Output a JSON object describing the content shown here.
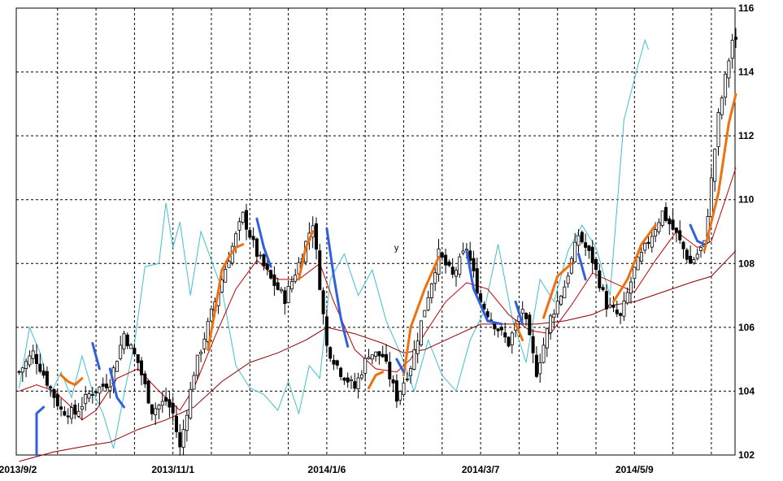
{
  "chart_data": {
    "type": "candlestick",
    "title": "",
    "xlabel": "",
    "ylabel": "",
    "ylim": [
      102,
      116
    ],
    "y_ticks": [
      102,
      104,
      106,
      108,
      110,
      112,
      114,
      116
    ],
    "y_tick_labels": [
      "102",
      "104",
      "106",
      "108",
      "110",
      "112",
      "114",
      "116"
    ],
    "x_tick_labels": [
      "2013/9/2",
      "2013/11/1",
      "2014/1/6",
      "2014/3/7",
      "2014/5/9"
    ],
    "x_tick_index": [
      0,
      44,
      88,
      132,
      176
    ],
    "grid": true,
    "grid_style": "dashed",
    "annotations": [
      {
        "text": "y",
        "index": 108,
        "value": 108.5
      }
    ],
    "colors": {
      "candle_body_up": "#ffffff",
      "candle_body_down": "#000000",
      "candle_outline": "#000000",
      "fast_ma": "#c00000",
      "slow_ma": "#8b0000",
      "cyan_line": "#40c0d0",
      "orange_segments": "#f07010",
      "blue_segments": "#3060e0"
    },
    "anchors": [
      [
        0,
        104.6
      ],
      [
        4,
        105.2
      ],
      [
        8,
        104.3
      ],
      [
        12,
        103.4
      ],
      [
        16,
        103.3
      ],
      [
        20,
        103.9
      ],
      [
        26,
        104.3
      ],
      [
        30,
        105.8
      ],
      [
        34,
        104.9
      ],
      [
        38,
        103.4
      ],
      [
        42,
        103.7
      ],
      [
        44,
        103.3
      ],
      [
        46,
        102.2
      ],
      [
        50,
        104.6
      ],
      [
        56,
        106.8
      ],
      [
        60,
        108.2
      ],
      [
        64,
        109.5
      ],
      [
        68,
        108.3
      ],
      [
        72,
        107.5
      ],
      [
        76,
        106.9
      ],
      [
        80,
        108.0
      ],
      [
        84,
        109.3
      ],
      [
        88,
        105.4
      ],
      [
        92,
        104.6
      ],
      [
        96,
        104.1
      ],
      [
        100,
        105.2
      ],
      [
        104,
        105.1
      ],
      [
        108,
        103.8
      ],
      [
        112,
        104.8
      ],
      [
        116,
        106.6
      ],
      [
        120,
        108.3
      ],
      [
        124,
        107.6
      ],
      [
        128,
        108.5
      ],
      [
        132,
        106.8
      ],
      [
        136,
        106.1
      ],
      [
        140,
        105.5
      ],
      [
        144,
        106.6
      ],
      [
        148,
        104.6
      ],
      [
        152,
        106.3
      ],
      [
        156,
        107.3
      ],
      [
        160,
        108.9
      ],
      [
        164,
        108.1
      ],
      [
        168,
        106.7
      ],
      [
        172,
        106.3
      ],
      [
        176,
        107.8
      ],
      [
        180,
        108.7
      ],
      [
        184,
        109.6
      ],
      [
        188,
        108.9
      ],
      [
        192,
        108.0
      ],
      [
        196,
        108.6
      ],
      [
        200,
        112.6
      ],
      [
        204,
        115.0
      ],
      [
        205,
        114.9
      ]
    ],
    "fast_ma_anchors": [
      [
        0,
        104.0
      ],
      [
        5,
        104.2
      ],
      [
        10,
        104.0
      ],
      [
        14,
        103.6
      ],
      [
        18,
        103.1
      ],
      [
        22,
        103.4
      ],
      [
        28,
        104.4
      ],
      [
        34,
        104.7
      ],
      [
        40,
        104.0
      ],
      [
        46,
        103.4
      ],
      [
        50,
        104.1
      ],
      [
        56,
        105.7
      ],
      [
        62,
        107.2
      ],
      [
        68,
        108.1
      ],
      [
        74,
        107.5
      ],
      [
        80,
        107.5
      ],
      [
        86,
        108.0
      ],
      [
        90,
        106.8
      ],
      [
        96,
        105.3
      ],
      [
        102,
        104.7
      ],
      [
        108,
        104.6
      ],
      [
        112,
        105.0
      ],
      [
        116,
        105.8
      ],
      [
        122,
        106.8
      ],
      [
        128,
        107.4
      ],
      [
        134,
        107.2
      ],
      [
        140,
        106.4
      ],
      [
        146,
        105.9
      ],
      [
        152,
        105.8
      ],
      [
        158,
        106.7
      ],
      [
        164,
        107.7
      ],
      [
        170,
        107.4
      ],
      [
        176,
        107.1
      ],
      [
        182,
        108.1
      ],
      [
        188,
        109.0
      ],
      [
        194,
        108.5
      ],
      [
        198,
        108.7
      ],
      [
        202,
        110.0
      ],
      [
        205,
        111.0
      ]
    ],
    "slow_ma_anchors": [
      [
        0,
        101.8
      ],
      [
        10,
        102.1
      ],
      [
        20,
        102.3
      ],
      [
        26,
        102.4
      ],
      [
        34,
        102.8
      ],
      [
        42,
        103.1
      ],
      [
        50,
        103.5
      ],
      [
        58,
        104.3
      ],
      [
        66,
        104.9
      ],
      [
        74,
        105.2
      ],
      [
        82,
        105.6
      ],
      [
        88,
        106.0
      ],
      [
        96,
        105.8
      ],
      [
        104,
        105.5
      ],
      [
        110,
        105.2
      ],
      [
        116,
        105.3
      ],
      [
        124,
        105.7
      ],
      [
        132,
        106.1
      ],
      [
        140,
        106.1
      ],
      [
        148,
        106.1
      ],
      [
        156,
        106.2
      ],
      [
        164,
        106.4
      ],
      [
        170,
        106.7
      ],
      [
        176,
        106.8
      ],
      [
        184,
        107.1
      ],
      [
        192,
        107.4
      ],
      [
        198,
        107.6
      ],
      [
        205,
        108.4
      ]
    ],
    "cyan_anchors": [
      [
        0,
        104.1
      ],
      [
        3,
        106.0
      ],
      [
        6,
        105.2
      ],
      [
        9,
        103.9
      ],
      [
        12,
        104.6
      ],
      [
        15,
        103.8
      ],
      [
        18,
        105.1
      ],
      [
        21,
        104.0
      ],
      [
        24,
        103.3
      ],
      [
        27,
        102.2
      ],
      [
        30,
        103.9
      ],
      [
        33,
        105.5
      ],
      [
        36,
        107.9
      ],
      [
        40,
        108.0
      ],
      [
        42,
        109.9
      ],
      [
        44,
        108.5
      ],
      [
        46,
        109.3
      ],
      [
        49,
        107.0
      ],
      [
        52,
        109.0
      ],
      [
        55,
        108.1
      ],
      [
        58,
        107.2
      ],
      [
        62,
        104.8
      ],
      [
        66,
        104.1
      ],
      [
        70,
        103.9
      ],
      [
        74,
        103.4
      ],
      [
        77,
        104.3
      ],
      [
        80,
        103.3
      ],
      [
        83,
        104.8
      ],
      [
        86,
        104.4
      ],
      [
        89,
        107.5
      ],
      [
        93,
        108.3
      ],
      [
        97,
        107.0
      ],
      [
        101,
        107.8
      ],
      [
        105,
        106.2
      ],
      [
        109,
        105.2
      ],
      [
        113,
        104.0
      ],
      [
        117,
        105.6
      ],
      [
        121,
        104.5
      ],
      [
        125,
        104.0
      ],
      [
        129,
        105.6
      ],
      [
        133,
        106.5
      ],
      [
        137,
        108.6
      ],
      [
        141,
        106.3
      ],
      [
        145,
        104.9
      ],
      [
        149,
        107.5
      ],
      [
        153,
        106.8
      ],
      [
        157,
        108.4
      ],
      [
        161,
        109.2
      ],
      [
        165,
        108.5
      ],
      [
        169,
        107.0
      ],
      [
        173,
        112.5
      ],
      [
        177,
        114.2
      ],
      [
        179,
        115.0
      ],
      [
        180,
        114.7
      ]
    ],
    "orange_segments": [
      [
        [
          12,
          104.5
        ],
        [
          14,
          104.3
        ],
        [
          16,
          104.2
        ],
        [
          18,
          104.4
        ]
      ],
      [
        [
          54,
          105.3
        ],
        [
          56,
          106.5
        ],
        [
          58,
          107.8
        ],
        [
          60,
          108.2
        ],
        [
          62,
          108.5
        ],
        [
          64,
          108.6
        ]
      ],
      [
        [
          80,
          107.5
        ],
        [
          82,
          108.5
        ],
        [
          84,
          109.0
        ]
      ],
      [
        [
          100,
          104.1
        ],
        [
          102,
          104.5
        ],
        [
          104,
          104.6
        ]
      ],
      [
        [
          110,
          104.5
        ],
        [
          112,
          106.0
        ],
        [
          116,
          107.2
        ],
        [
          120,
          108.2
        ]
      ],
      [
        [
          142,
          106.1
        ],
        [
          144,
          105.6
        ]
      ],
      [
        [
          150,
          106.3
        ],
        [
          154,
          107.6
        ],
        [
          158,
          108.0
        ]
      ],
      [
        [
          170,
          106.8
        ],
        [
          174,
          107.5
        ],
        [
          178,
          108.6
        ],
        [
          182,
          109.2
        ]
      ],
      [
        [
          196,
          108.4
        ],
        [
          200,
          110.2
        ],
        [
          203,
          112.4
        ],
        [
          205,
          113.3
        ]
      ]
    ],
    "blue_segments": [
      [
        [
          5,
          102.0
        ],
        [
          5,
          103.3
        ],
        [
          7,
          103.5
        ]
      ],
      [
        [
          21,
          105.5
        ],
        [
          23,
          104.7
        ]
      ],
      [
        [
          26,
          104.7
        ],
        [
          28,
          103.8
        ],
        [
          30,
          103.5
        ]
      ],
      [
        [
          68,
          109.4
        ],
        [
          70,
          108.5
        ],
        [
          72,
          107.9
        ]
      ],
      [
        [
          88,
          109.1
        ],
        [
          90,
          107.6
        ],
        [
          92,
          106.3
        ],
        [
          94,
          105.4
        ]
      ],
      [
        [
          108,
          105.0
        ],
        [
          110,
          104.6
        ]
      ],
      [
        [
          128,
          108.4
        ],
        [
          130,
          107.2
        ],
        [
          134,
          106.2
        ],
        [
          138,
          106.1
        ]
      ],
      [
        [
          142,
          106.8
        ],
        [
          144,
          106.1
        ]
      ],
      [
        [
          160,
          108.3
        ],
        [
          162,
          107.5
        ]
      ],
      [
        [
          192,
          109.2
        ],
        [
          194,
          108.7
        ],
        [
          196,
          108.6
        ]
      ]
    ]
  }
}
